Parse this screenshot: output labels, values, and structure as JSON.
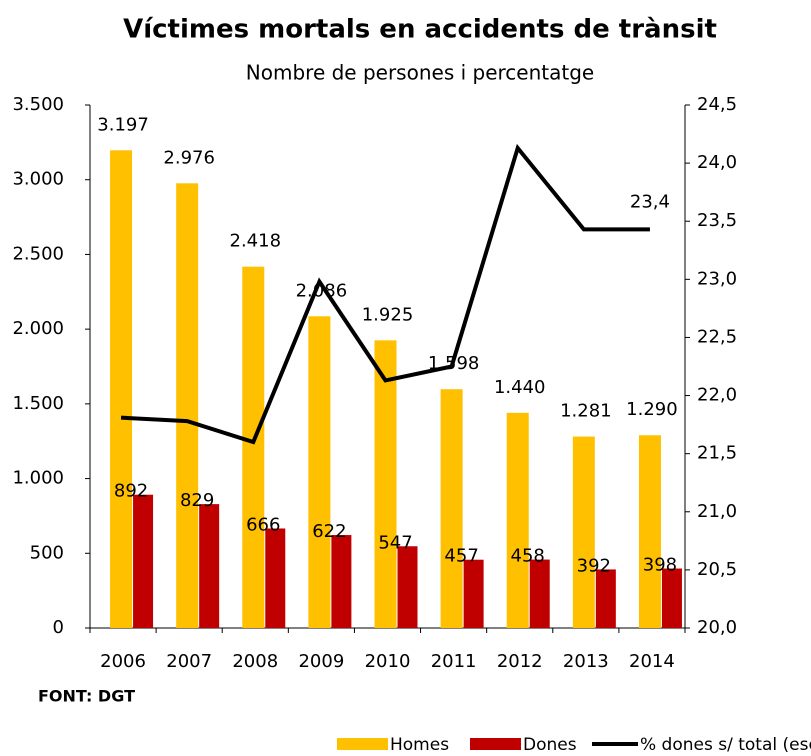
{
  "chart_data": {
    "type": "bar",
    "title": "Víctimes mortals en accidents de trànsit",
    "subtitle": "Nombre de persones i percentatge",
    "source": "FONT: DGT",
    "categories": [
      "2006",
      "2007",
      "2008",
      "2009",
      "2010",
      "2011",
      "2012",
      "2013",
      "2014"
    ],
    "series": [
      {
        "name": "Homes",
        "color": "#FFC000",
        "values": [
          3197,
          2976,
          2418,
          2086,
          1925,
          1598,
          1440,
          1281,
          1290
        ],
        "value_labels": [
          "3.197",
          "2.976",
          "2.418",
          "2.086",
          "1.925",
          "1.598",
          "1.440",
          "1.281",
          "1.290"
        ]
      },
      {
        "name": "Dones",
        "color": "#C00000",
        "values": [
          892,
          829,
          666,
          622,
          547,
          457,
          458,
          392,
          398
        ]
      },
      {
        "name": "% dones s/ total (esc. Dreta)",
        "color": "#000000",
        "axis": "y2",
        "type": "line",
        "values": [
          21.81,
          21.78,
          21.6,
          22.98,
          22.13,
          22.25,
          24.13,
          23.43,
          23.43
        ],
        "value_labels": [
          null,
          null,
          null,
          null,
          null,
          null,
          null,
          null,
          "23,4"
        ]
      }
    ],
    "ylim": [
      0,
      3500
    ],
    "yticks": [
      0,
      500,
      {
        "value": 1000,
        "label": "1.000"
      },
      {
        "value": 1500,
        "label": "1.500"
      },
      {
        "value": 2000,
        "label": "2.000"
      },
      {
        "value": 2500,
        "label": "2.500"
      },
      {
        "value": 3000,
        "label": "3.000"
      },
      {
        "value": 3500,
        "label": "3.500"
      }
    ],
    "y2lim": [
      20,
      24.5
    ],
    "y2ticks": [
      {
        "value": 20,
        "label": "20,0"
      },
      {
        "value": 20.5,
        "label": "20,5"
      },
      {
        "value": 21,
        "label": "21,0"
      },
      {
        "value": 21.5,
        "label": "21,5"
      },
      {
        "value": 22,
        "label": "22,0"
      },
      {
        "value": 22.5,
        "label": "22,5"
      },
      {
        "value": 23,
        "label": "23,0"
      },
      {
        "value": 23.5,
        "label": "23,5"
      },
      {
        "value": 24,
        "label": "24,0"
      },
      {
        "value": 24.5,
        "label": "24,5"
      }
    ],
    "legend": "bottom"
  }
}
